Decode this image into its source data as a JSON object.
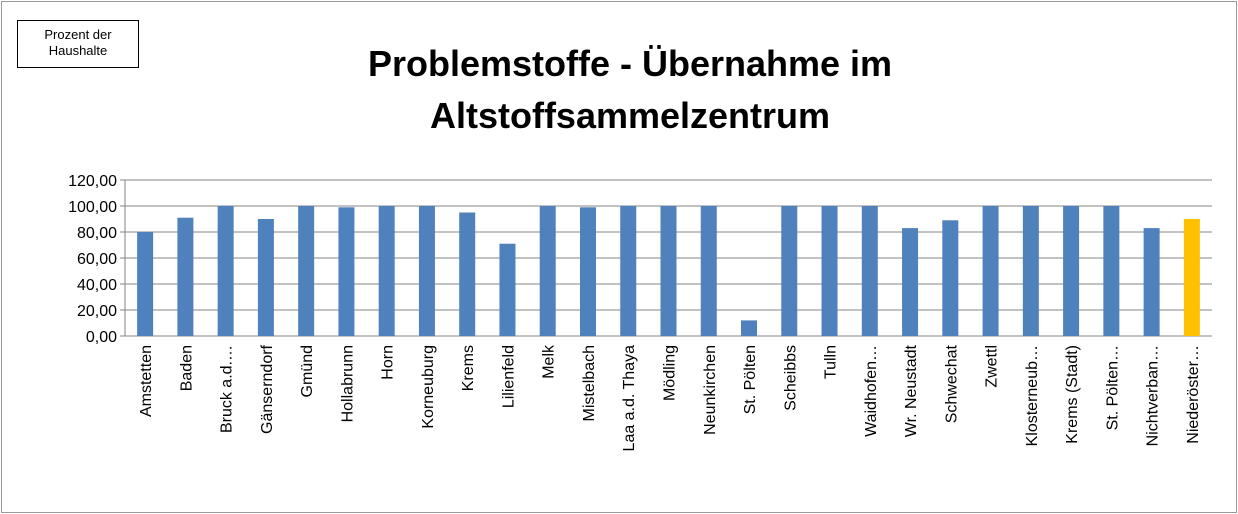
{
  "chart_data": {
    "type": "bar",
    "title": "Problemstoffe - Übernahme im Altstoffsammelzentrum",
    "ylabel": "Prozent der Haushalte",
    "categories": [
      "Amstetten",
      "Baden",
      "Bruck a.d.…",
      "Gänserndorf",
      "Gmünd",
      "Hollabrunn",
      "Horn",
      "Korneuburg",
      "Krems",
      "Lilienfeld",
      "Melk",
      "Mistelbach",
      "Laa a.d. Thaya",
      "Mödling",
      "Neunkirchen",
      "St. Pölten",
      "Scheibbs",
      "Tulln",
      "Waidhofen…",
      "Wr. Neustadt",
      "Schwechat",
      "Zwettl",
      "Klosterneub…",
      "Krems (Stadt)",
      "St. Pölten…",
      "Nichtverban…",
      "Niederöster…"
    ],
    "values": [
      80,
      91,
      100,
      90,
      100,
      99,
      100,
      100,
      95,
      71,
      100,
      99,
      100,
      100,
      100,
      12,
      100,
      100,
      100,
      83,
      89,
      100,
      100,
      100,
      100,
      83,
      90
    ],
    "colors": [
      "#4f81bd",
      "#4f81bd",
      "#4f81bd",
      "#4f81bd",
      "#4f81bd",
      "#4f81bd",
      "#4f81bd",
      "#4f81bd",
      "#4f81bd",
      "#4f81bd",
      "#4f81bd",
      "#4f81bd",
      "#4f81bd",
      "#4f81bd",
      "#4f81bd",
      "#4f81bd",
      "#4f81bd",
      "#4f81bd",
      "#4f81bd",
      "#4f81bd",
      "#4f81bd",
      "#4f81bd",
      "#4f81bd",
      "#4f81bd",
      "#4f81bd",
      "#4f81bd",
      "#ffc000"
    ],
    "ylim": [
      0,
      120
    ],
    "yticks": [
      {
        "value": 0,
        "label": "0,00"
      },
      {
        "value": 20,
        "label": "20,00"
      },
      {
        "value": 40,
        "label": "40,00"
      },
      {
        "value": 60,
        "label": "60,00"
      },
      {
        "value": 80,
        "label": "80,00"
      },
      {
        "value": 100,
        "label": "100,00"
      },
      {
        "value": 120,
        "label": "120,00"
      }
    ],
    "grid": true
  }
}
